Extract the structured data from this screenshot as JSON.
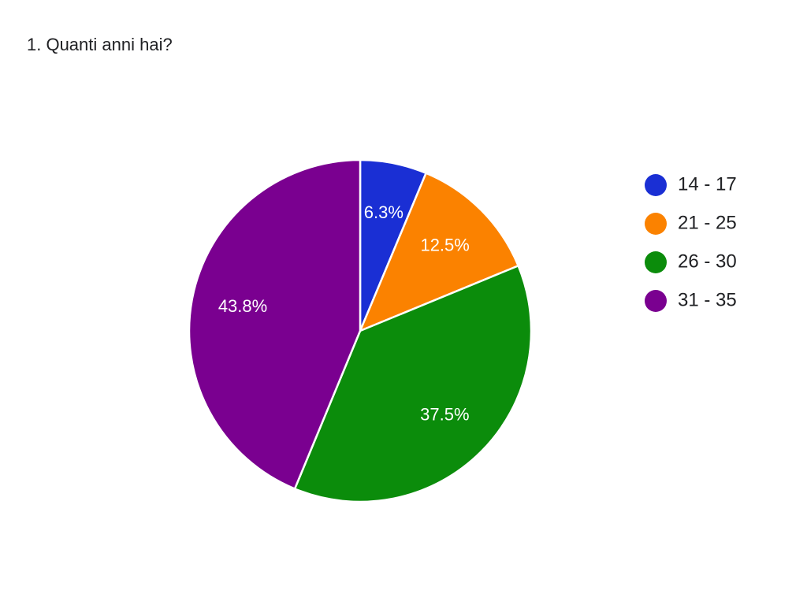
{
  "chart_data": {
    "type": "pie",
    "title": "1. Quanti anni hai?",
    "categories": [
      "14 - 17",
      "21 - 25",
      "26 - 30",
      "31 - 35"
    ],
    "values": [
      6.3,
      12.5,
      37.5,
      43.8
    ],
    "value_labels": [
      "6.3%",
      "12.5%",
      "37.5%",
      "43.8%"
    ],
    "colors": [
      "#1a2fd4",
      "#fb8200",
      "#0b8c0b",
      "#7a0090"
    ]
  }
}
